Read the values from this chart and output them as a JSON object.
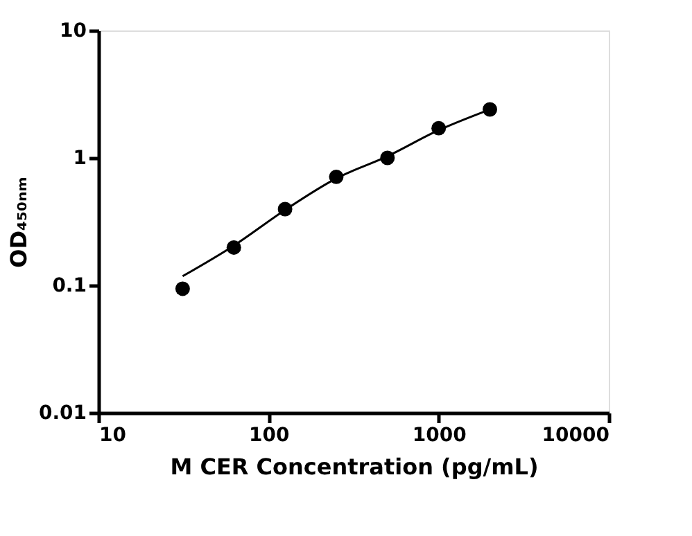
{
  "chart_data": {
    "type": "scatter",
    "xlabel": "M CER Concentration (pg/mL)",
    "ylabel": "OD₄₅₀ₙₘ",
    "log": "xy",
    "grid": false,
    "marker": "circle",
    "xlim": [
      10,
      10000
    ],
    "xticks": [
      10,
      100,
      1000,
      10000
    ],
    "ylim": [
      0.01,
      10
    ],
    "yticks": [
      0.01,
      0.1,
      1,
      10
    ],
    "series": [
      {
        "color": "#000000",
        "x": [
          31.25,
          62.5,
          125,
          250,
          500,
          1000,
          2000
        ],
        "values": [
          0.094,
          0.198,
          0.396,
          0.71,
          1.0,
          1.71,
          2.4
        ]
      },
      {
        "type": "line",
        "color": "#000000",
        "marker": "none",
        "x": [
          31.25,
          62.5,
          125,
          250,
          500,
          1000,
          2000
        ],
        "values": [
          0.118,
          0.205,
          0.39,
          0.69,
          1.03,
          1.65,
          2.4
        ]
      }
    ]
  }
}
